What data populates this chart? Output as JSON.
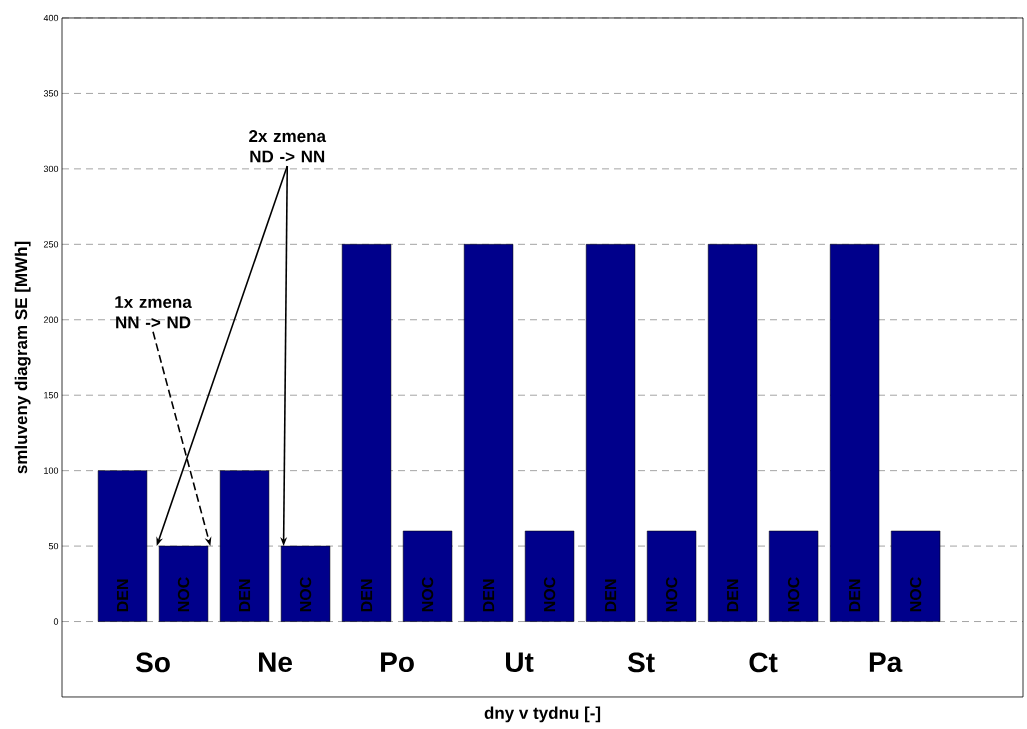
{
  "chart_data": {
    "type": "bar",
    "xlabel": "dny v tydnu [-]",
    "ylabel": "smluveny diagram SE [MWh]",
    "categories": [
      "So",
      "Ne",
      "Po",
      "Ut",
      "St",
      "Ct",
      "Pa",
      null
    ],
    "series": [
      {
        "name": "DEN",
        "color": "#00008b",
        "values": [
          100,
          100,
          250,
          250,
          250,
          250,
          250,
          null
        ]
      },
      {
        "name": "NOC",
        "color": "#00008b",
        "values": [
          50,
          50,
          60,
          60,
          60,
          60,
          60,
          null
        ]
      }
    ],
    "ylim": [
      -50,
      400
    ],
    "yticks": [
      0,
      50,
      100,
      150,
      200,
      250,
      300,
      350,
      400
    ],
    "grid": "y",
    "annotations": [
      "2x zmena ND -> NN",
      "1x zmena NN -> ND"
    ]
  }
}
